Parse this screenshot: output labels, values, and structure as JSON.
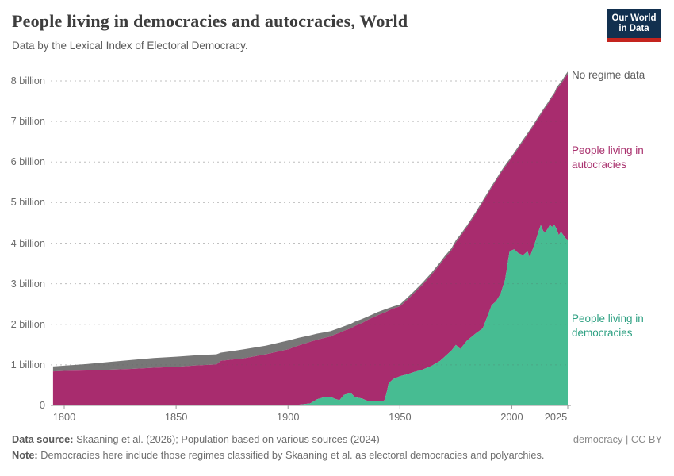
{
  "header": {
    "title": "People living in democracies and autocracies, World",
    "subtitle": "Data by the Lexical Index of Electoral Democracy."
  },
  "logo": {
    "line1": "Our World",
    "line2": "in Data",
    "bg_color": "#12304f",
    "accent_color": "#c4241e"
  },
  "annotations": [
    {
      "id": "no-regime-data",
      "text": "No regime data",
      "color": "#5d5d5d"
    },
    {
      "id": "autocracies",
      "text": "People living in autocracies",
      "color": "#a9316e"
    },
    {
      "id": "democracies",
      "text": "People living in democracies",
      "color": "#2fa183"
    }
  ],
  "chart_data": {
    "type": "area",
    "stacked": true,
    "title": "People living in democracies and autocracies, World",
    "xlabel": "",
    "ylabel": "",
    "x_range": [
      1795,
      2025
    ],
    "ylim": [
      0,
      8.25
    ],
    "unit": "billion people",
    "grid": true,
    "x_ticks": [
      {
        "year": 1800,
        "label": "1800"
      },
      {
        "year": 1850,
        "label": "1850"
      },
      {
        "year": 1900,
        "label": "1900"
      },
      {
        "year": 1950,
        "label": "1950"
      },
      {
        "year": 2000,
        "label": "2000"
      },
      {
        "year": 2025,
        "label": "2025"
      }
    ],
    "y_ticks": [
      {
        "value": 0,
        "label": "0"
      },
      {
        "value": 1,
        "label": "1 billion"
      },
      {
        "value": 2,
        "label": "2 billion"
      },
      {
        "value": 3,
        "label": "3 billion"
      },
      {
        "value": 4,
        "label": "4 billion"
      },
      {
        "value": 5,
        "label": "5 billion"
      },
      {
        "value": 6,
        "label": "6 billion"
      },
      {
        "value": 7,
        "label": "7 billion"
      },
      {
        "value": 8,
        "label": "8 billion"
      }
    ],
    "years": [
      1795,
      1800,
      1810,
      1820,
      1830,
      1840,
      1850,
      1860,
      1868,
      1870,
      1875,
      1880,
      1890,
      1900,
      1905,
      1910,
      1913,
      1916,
      1919,
      1921,
      1923,
      1925,
      1928,
      1930,
      1933,
      1936,
      1940,
      1943,
      1944,
      1945,
      1947,
      1950,
      1953,
      1956,
      1960,
      1964,
      1968,
      1970,
      1973,
      1975,
      1977,
      1980,
      1984,
      1987,
      1989,
      1991,
      1993,
      1995,
      1997,
      1999,
      2001,
      2003,
      2005,
      2007,
      2008,
      2010,
      2012,
      2013,
      2014,
      2015,
      2016,
      2017,
      2018,
      2019,
      2020,
      2021,
      2022,
      2023,
      2024,
      2025
    ],
    "series": [
      {
        "name": "People living in democracies",
        "color": "#47bc92",
        "values": [
          0,
          0,
          0,
          0,
          0,
          0,
          0,
          0,
          0,
          0,
          0,
          0,
          0,
          0,
          0.02,
          0.05,
          0.15,
          0.2,
          0.21,
          0.16,
          0.13,
          0.26,
          0.31,
          0.2,
          0.17,
          0.1,
          0.1,
          0.12,
          0.3,
          0.55,
          0.65,
          0.72,
          0.76,
          0.82,
          0.88,
          0.97,
          1.1,
          1.2,
          1.35,
          1.49,
          1.39,
          1.6,
          1.78,
          1.9,
          2.18,
          2.47,
          2.57,
          2.75,
          3.1,
          3.8,
          3.85,
          3.75,
          3.7,
          3.8,
          3.65,
          3.95,
          4.3,
          4.45,
          4.3,
          4.27,
          4.35,
          4.45,
          4.4,
          4.45,
          4.35,
          4.2,
          4.28,
          4.2,
          4.12,
          4.08
        ]
      },
      {
        "name": "People living in autocracies",
        "color": "#a82c6e",
        "values": [
          0.84,
          0.85,
          0.86,
          0.88,
          0.9,
          0.93,
          0.95,
          0.99,
          1.01,
          1.1,
          1.13,
          1.16,
          1.26,
          1.38,
          1.46,
          1.52,
          1.47,
          1.46,
          1.49,
          1.59,
          1.66,
          1.58,
          1.59,
          1.76,
          1.86,
          2.02,
          2.12,
          2.17,
          2.01,
          1.79,
          1.74,
          1.72,
          1.83,
          1.93,
          2.09,
          2.24,
          2.38,
          2.43,
          2.47,
          2.53,
          2.77,
          2.8,
          2.96,
          3.11,
          3.01,
          2.9,
          2.97,
          2.97,
          2.78,
          2.23,
          2.34,
          2.6,
          2.81,
          2.87,
          3.1,
          2.97,
          2.79,
          2.72,
          2.96,
          3.07,
          3.07,
          3.06,
          3.19,
          3.22,
          3.44,
          3.66,
          3.65,
          3.81,
          3.97,
          4.09
        ]
      },
      {
        "name": "No regime data",
        "color": "#777777",
        "values": [
          0.12,
          0.13,
          0.16,
          0.19,
          0.22,
          0.24,
          0.25,
          0.25,
          0.25,
          0.2,
          0.21,
          0.22,
          0.21,
          0.22,
          0.19,
          0.16,
          0.15,
          0.14,
          0.13,
          0.12,
          0.12,
          0.11,
          0.11,
          0.11,
          0.1,
          0.08,
          0.08,
          0.07,
          0.07,
          0.06,
          0.05,
          0.05,
          0.05,
          0.05,
          0.05,
          0.05,
          0.05,
          0.05,
          0.05,
          0.05,
          0.05,
          0.04,
          0.04,
          0.04,
          0.04,
          0.04,
          0.04,
          0.04,
          0.04,
          0.04,
          0.04,
          0.04,
          0.04,
          0.04,
          0.04,
          0.04,
          0.04,
          0.04,
          0.04,
          0.04,
          0.04,
          0.04,
          0.04,
          0.04,
          0.05,
          0.05,
          0.05,
          0.05,
          0.06,
          0.06
        ]
      }
    ],
    "legend_position": "right-edge-labels"
  },
  "footer": {
    "source_label": "Data source:",
    "source_text": " Skaaning et al. (2026); Population based on various sources (2024)",
    "license": "democracy | CC BY",
    "note_label": "Note:",
    "note_text": " Democracies here include those regimes classified by Skaaning et al. as electoral democracies and polyarchies."
  }
}
